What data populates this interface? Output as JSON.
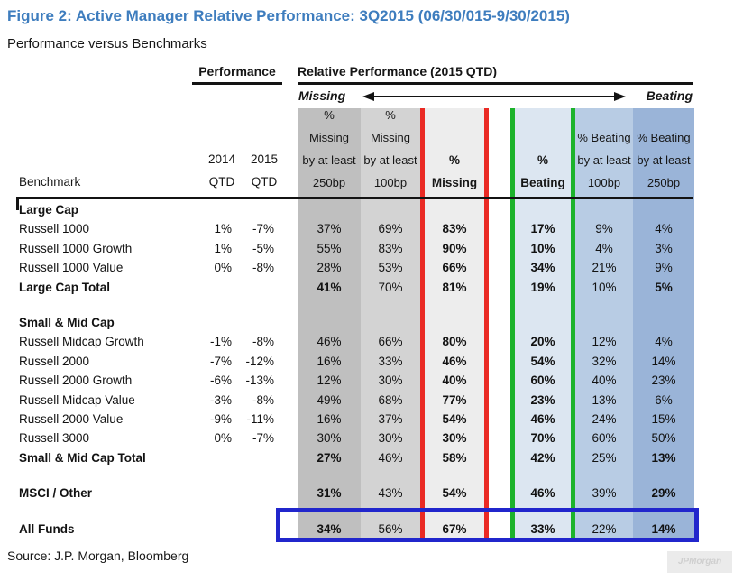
{
  "figure": {
    "title": "Figure 2: Active Manager Relative Performance: 3Q2015 (06/30/015-9/30/2015)",
    "subtitle": "Performance versus Benchmarks",
    "source": "Source: J.P. Morgan, Bloomberg",
    "watermark": "JPMorgan"
  },
  "header": {
    "performance_group": "Performance",
    "relative_group": "Relative Performance (2015 QTD)",
    "missing_label": "Missing",
    "beating_label": "Beating",
    "benchmark_label": "Benchmark",
    "year_2014": "2014",
    "year_2015": "2015",
    "qtd_label": "QTD",
    "column_lines": [
      [
        "%",
        "Missing",
        "by at least",
        "250bp"
      ],
      [
        "%",
        "Missing",
        "by at least",
        "100bp"
      ],
      [
        "%",
        "Missing"
      ],
      [
        "%",
        "Beating"
      ],
      [
        "% Beating",
        "by at least",
        "100bp"
      ],
      [
        "% Beating",
        "by at least",
        "250bp"
      ]
    ]
  },
  "colors": {
    "title_blue": "#3E7DBE",
    "col_m250": "#BFBFBF",
    "col_m100": "#D3D3D3",
    "col_miss": "#EDEDED",
    "col_beat": "#DCE6F1",
    "col_b100": "#B8CCE4",
    "col_b250": "#9AB4D8",
    "line_red": "#EA2A24",
    "line_green": "#1CB32B",
    "box_blue": "#2126CC"
  },
  "chart_data": {
    "type": "table",
    "title": "Active Manager Relative Performance: 3Q2015 (06/30/015-9/30/2015)",
    "subtitle": "Performance versus Benchmarks",
    "columns": [
      "Benchmark",
      "2014 QTD",
      "2015 QTD",
      "% Missing by at least 250bp",
      "% Missing by at least 100bp",
      "% Missing",
      "% Beating",
      "% Beating by at least 100bp",
      "% Beating by at least 250bp"
    ],
    "rows": [
      {
        "type": "section",
        "label": "Large Cap",
        "p14": "",
        "p15": "",
        "v": [
          "",
          "",
          "",
          "",
          "",
          ""
        ]
      },
      {
        "type": "data",
        "label": "Russell 1000",
        "p14": "1%",
        "p15": "-7%",
        "v": [
          "37%",
          "69%",
          "83%",
          "17%",
          "9%",
          "4%"
        ]
      },
      {
        "type": "data",
        "label": "Russell 1000 Growth",
        "p14": "1%",
        "p15": "-5%",
        "v": [
          "55%",
          "83%",
          "90%",
          "10%",
          "4%",
          "3%"
        ]
      },
      {
        "type": "data",
        "label": "Russell 1000 Value",
        "p14": "0%",
        "p15": "-8%",
        "v": [
          "28%",
          "53%",
          "66%",
          "34%",
          "21%",
          "9%"
        ]
      },
      {
        "type": "total",
        "label": "Large Cap Total",
        "p14": "",
        "p15": "",
        "v": [
          "41%",
          "70%",
          "81%",
          "19%",
          "10%",
          "5%"
        ]
      },
      {
        "type": "spacer",
        "label": "",
        "p14": "",
        "p15": "",
        "v": [
          "",
          "",
          "",
          "",
          "",
          ""
        ]
      },
      {
        "type": "section",
        "label": "Small & Mid Cap",
        "p14": "",
        "p15": "",
        "v": [
          "",
          "",
          "",
          "",
          "",
          ""
        ]
      },
      {
        "type": "data",
        "label": "Russell Midcap Growth",
        "p14": "-1%",
        "p15": "-8%",
        "v": [
          "46%",
          "66%",
          "80%",
          "20%",
          "12%",
          "4%"
        ]
      },
      {
        "type": "data",
        "label": "Russell 2000",
        "p14": "-7%",
        "p15": "-12%",
        "v": [
          "16%",
          "33%",
          "46%",
          "54%",
          "32%",
          "14%"
        ]
      },
      {
        "type": "data",
        "label": "Russell 2000 Growth",
        "p14": "-6%",
        "p15": "-13%",
        "v": [
          "12%",
          "30%",
          "40%",
          "60%",
          "40%",
          "23%"
        ]
      },
      {
        "type": "data",
        "label": "Russell Midcap Value",
        "p14": "-3%",
        "p15": "-8%",
        "v": [
          "49%",
          "68%",
          "77%",
          "23%",
          "13%",
          "6%"
        ]
      },
      {
        "type": "data",
        "label": "Russell 2000 Value",
        "p14": "-9%",
        "p15": "-11%",
        "v": [
          "16%",
          "37%",
          "54%",
          "46%",
          "24%",
          "15%"
        ]
      },
      {
        "type": "data",
        "label": "Russell 3000",
        "p14": "0%",
        "p15": "-7%",
        "v": [
          "30%",
          "30%",
          "30%",
          "70%",
          "60%",
          "50%"
        ]
      },
      {
        "type": "total",
        "label": "Small & Mid Cap Total",
        "p14": "",
        "p15": "",
        "v": [
          "27%",
          "46%",
          "58%",
          "42%",
          "25%",
          "13%"
        ]
      },
      {
        "type": "spacer",
        "label": "",
        "p14": "",
        "p15": "",
        "v": [
          "",
          "",
          "",
          "",
          "",
          ""
        ]
      },
      {
        "type": "total",
        "label": "MSCI / Other",
        "p14": "",
        "p15": "",
        "v": [
          "31%",
          "43%",
          "54%",
          "46%",
          "39%",
          "29%"
        ]
      },
      {
        "type": "spacer",
        "label": "",
        "p14": "",
        "p15": "",
        "v": [
          "",
          "",
          "",
          "",
          "",
          ""
        ]
      },
      {
        "type": "total",
        "label": "All Funds",
        "p14": "",
        "p15": "",
        "v": [
          "34%",
          "56%",
          "67%",
          "33%",
          "22%",
          "14%"
        ]
      }
    ]
  }
}
